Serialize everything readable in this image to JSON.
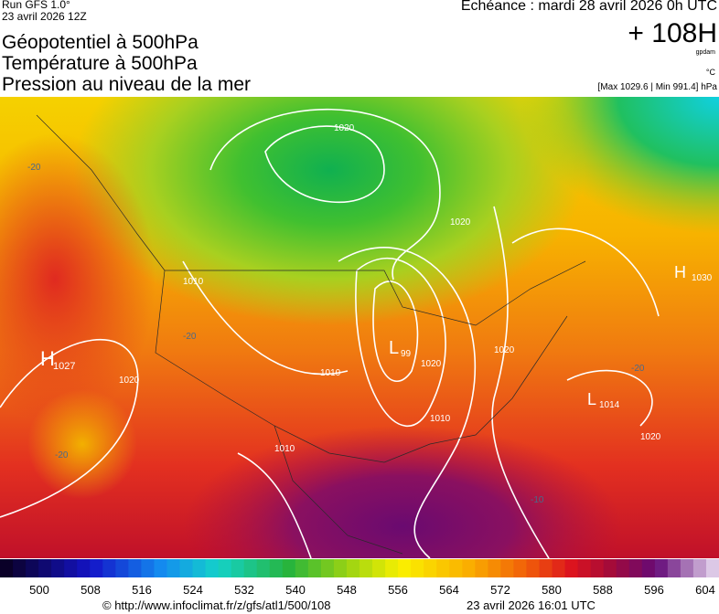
{
  "header": {
    "run": "Run GFS 1.0°",
    "date": "23 avril 2026 12Z",
    "titles": [
      "Géopotentiel à 500hPa",
      "Température à 500hPa",
      "Pression au niveau de la mer"
    ],
    "echeance": "Echéance : mardi 28 avril 2026 0h UTC",
    "lead": "+ 108H",
    "unit_geo": "gpdam",
    "unit_temp": "°C",
    "range": "[Max 1029.6 | Min 991.4] hPa"
  },
  "map": {
    "labels": [
      "H",
      "1027",
      "H",
      "1030",
      "L",
      "99",
      "L",
      "1014",
      "1020",
      "1020",
      "1020",
      "1020",
      "1010",
      "1010",
      "1010",
      "1010",
      "1020",
      "1020",
      "-20",
      "-20",
      "-20",
      "-20",
      "-10"
    ]
  },
  "colorbar": {
    "ticks": [
      "500",
      "508",
      "516",
      "524",
      "532",
      "540",
      "548",
      "556",
      "564",
      "572",
      "580",
      "588",
      "596",
      "604"
    ]
  },
  "footer": {
    "url": "© http://www.infoclimat.fr/z/gfs/atl1/500/108",
    "generated": "23 avril 2026 16:01 UTC"
  }
}
